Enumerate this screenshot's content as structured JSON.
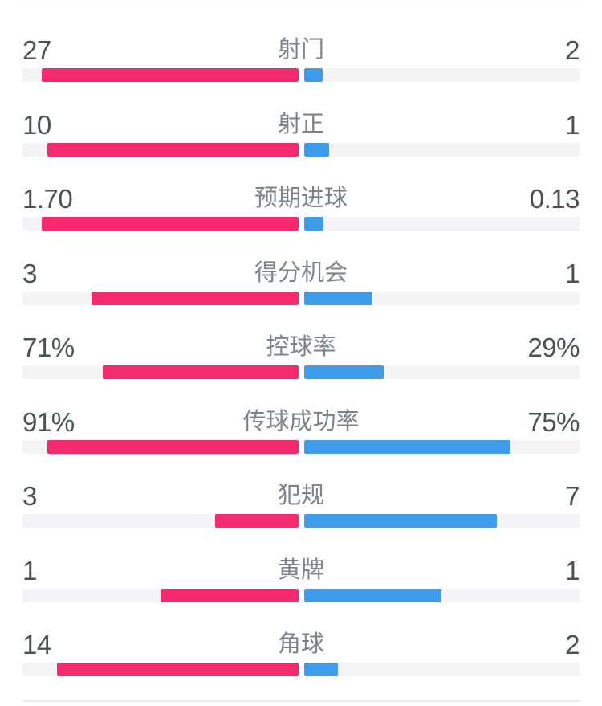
{
  "colors": {
    "home": "#f32a6e",
    "away": "#3e9cea",
    "track": "#f4f4f6",
    "value_text": "#4c5055",
    "label_text": "#7e8288"
  },
  "stats": [
    {
      "label": "射门",
      "home": "27",
      "away": "2"
    },
    {
      "label": "射正",
      "home": "10",
      "away": "1"
    },
    {
      "label": "预期进球",
      "home": "1.70",
      "away": "0.13"
    },
    {
      "label": "得分机会",
      "home": "3",
      "away": "1"
    },
    {
      "label": "控球率",
      "home": "71%",
      "away": "29%"
    },
    {
      "label": "传球成功率",
      "home": "91%",
      "away": "75%"
    },
    {
      "label": "犯规",
      "home": "3",
      "away": "7"
    },
    {
      "label": "黄牌",
      "home": "1",
      "away": "1"
    },
    {
      "label": "角球",
      "home": "14",
      "away": "2"
    }
  ],
  "chart_data": {
    "type": "bar",
    "orientation": "horizontal-paired",
    "categories": [
      "射门",
      "射正",
      "预期进球",
      "得分机会",
      "控球率",
      "传球成功率",
      "犯规",
      "黄牌",
      "角球"
    ],
    "series": [
      {
        "name": "left-team",
        "color": "#f32a6e",
        "values": [
          27,
          10,
          1.7,
          3,
          71,
          91,
          3,
          1,
          14
        ]
      },
      {
        "name": "right-team",
        "color": "#3e9cea",
        "values": [
          2,
          1,
          0.13,
          1,
          29,
          75,
          7,
          1,
          2
        ]
      }
    ],
    "value_labels": {
      "left": [
        "27",
        "10",
        "1.70",
        "3",
        "71%",
        "91%",
        "3",
        "1",
        "14"
      ],
      "right": [
        "2",
        "1",
        "0.13",
        "1",
        "29%",
        "75%",
        "7",
        "1",
        "2"
      ]
    },
    "layout_hint": "bars grow outward from center; percent rows scaled to 100, count rows scaled to row total"
  }
}
